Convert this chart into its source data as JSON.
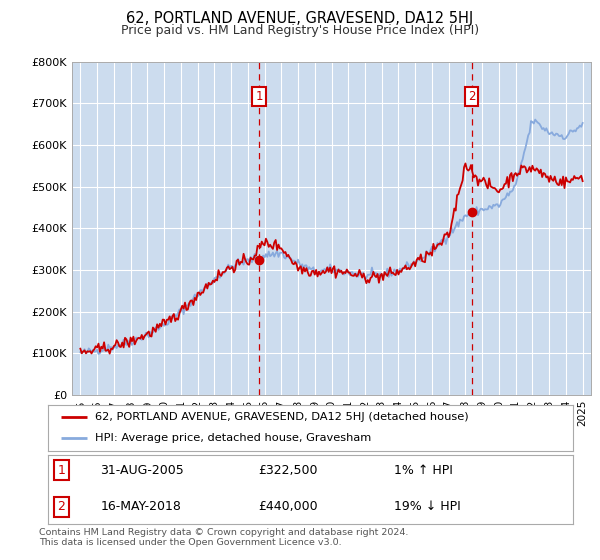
{
  "title": "62, PORTLAND AVENUE, GRAVESEND, DA12 5HJ",
  "subtitle": "Price paid vs. HM Land Registry's House Price Index (HPI)",
  "footer": "Contains HM Land Registry data © Crown copyright and database right 2024.\nThis data is licensed under the Open Government Licence v3.0.",
  "legend_label_red": "62, PORTLAND AVENUE, GRAVESEND, DA12 5HJ (detached house)",
  "legend_label_blue": "HPI: Average price, detached house, Gravesham",
  "annotation1_date": "31-AUG-2005",
  "annotation1_price": "£322,500",
  "annotation1_hpi": "1% ↑ HPI",
  "annotation2_date": "16-MAY-2018",
  "annotation2_price": "£440,000",
  "annotation2_hpi": "19% ↓ HPI",
  "bg_color": "#ccdcee",
  "ylim": [
    0,
    800000
  ],
  "yticks": [
    0,
    100000,
    200000,
    300000,
    400000,
    500000,
    600000,
    700000,
    800000
  ],
  "ytick_labels": [
    "£0",
    "£100K",
    "£200K",
    "£300K",
    "£400K",
    "£500K",
    "£600K",
    "£700K",
    "£800K"
  ],
  "sale1_year": 2005.67,
  "sale1_price": 322500,
  "sale2_year": 2018.37,
  "sale2_price": 440000,
  "red_color": "#cc0000",
  "blue_color": "#88aadd",
  "hpi_years": [
    1995,
    1996,
    1997,
    1998,
    1999,
    2000,
    2001,
    2002,
    2003,
    2004,
    2005,
    2006,
    2007,
    2008,
    2009,
    2010,
    2011,
    2012,
    2013,
    2014,
    2015,
    2016,
    2017,
    2018,
    2019,
    2020,
    2021,
    2022,
    2023,
    2024,
    2025
  ],
  "hpi_values": [
    100000,
    107000,
    116000,
    128000,
    145000,
    168000,
    200000,
    240000,
    278000,
    308000,
    322000,
    335000,
    340000,
    315000,
    295000,
    300000,
    295000,
    285000,
    288000,
    298000,
    318000,
    345000,
    385000,
    430000,
    445000,
    455000,
    500000,
    660000,
    630000,
    620000,
    650000
  ],
  "prop_years": [
    1995,
    1996,
    1997,
    1998,
    1999,
    2000,
    2001,
    2002,
    2003,
    2004,
    2005,
    2006,
    2007,
    2008,
    2009,
    2010,
    2011,
    2012,
    2013,
    2014,
    2015,
    2016,
    2017,
    2018,
    2019,
    2020,
    2021,
    2022,
    2023,
    2024,
    2025
  ],
  "prop_values": [
    100000,
    107000,
    116000,
    128000,
    145000,
    168000,
    200000,
    240000,
    278000,
    308000,
    320000,
    365000,
    355000,
    305000,
    295000,
    300000,
    292000,
    282000,
    285000,
    295000,
    315000,
    342000,
    382000,
    555000,
    510000,
    490000,
    535000,
    545000,
    520000,
    510000,
    525000
  ]
}
